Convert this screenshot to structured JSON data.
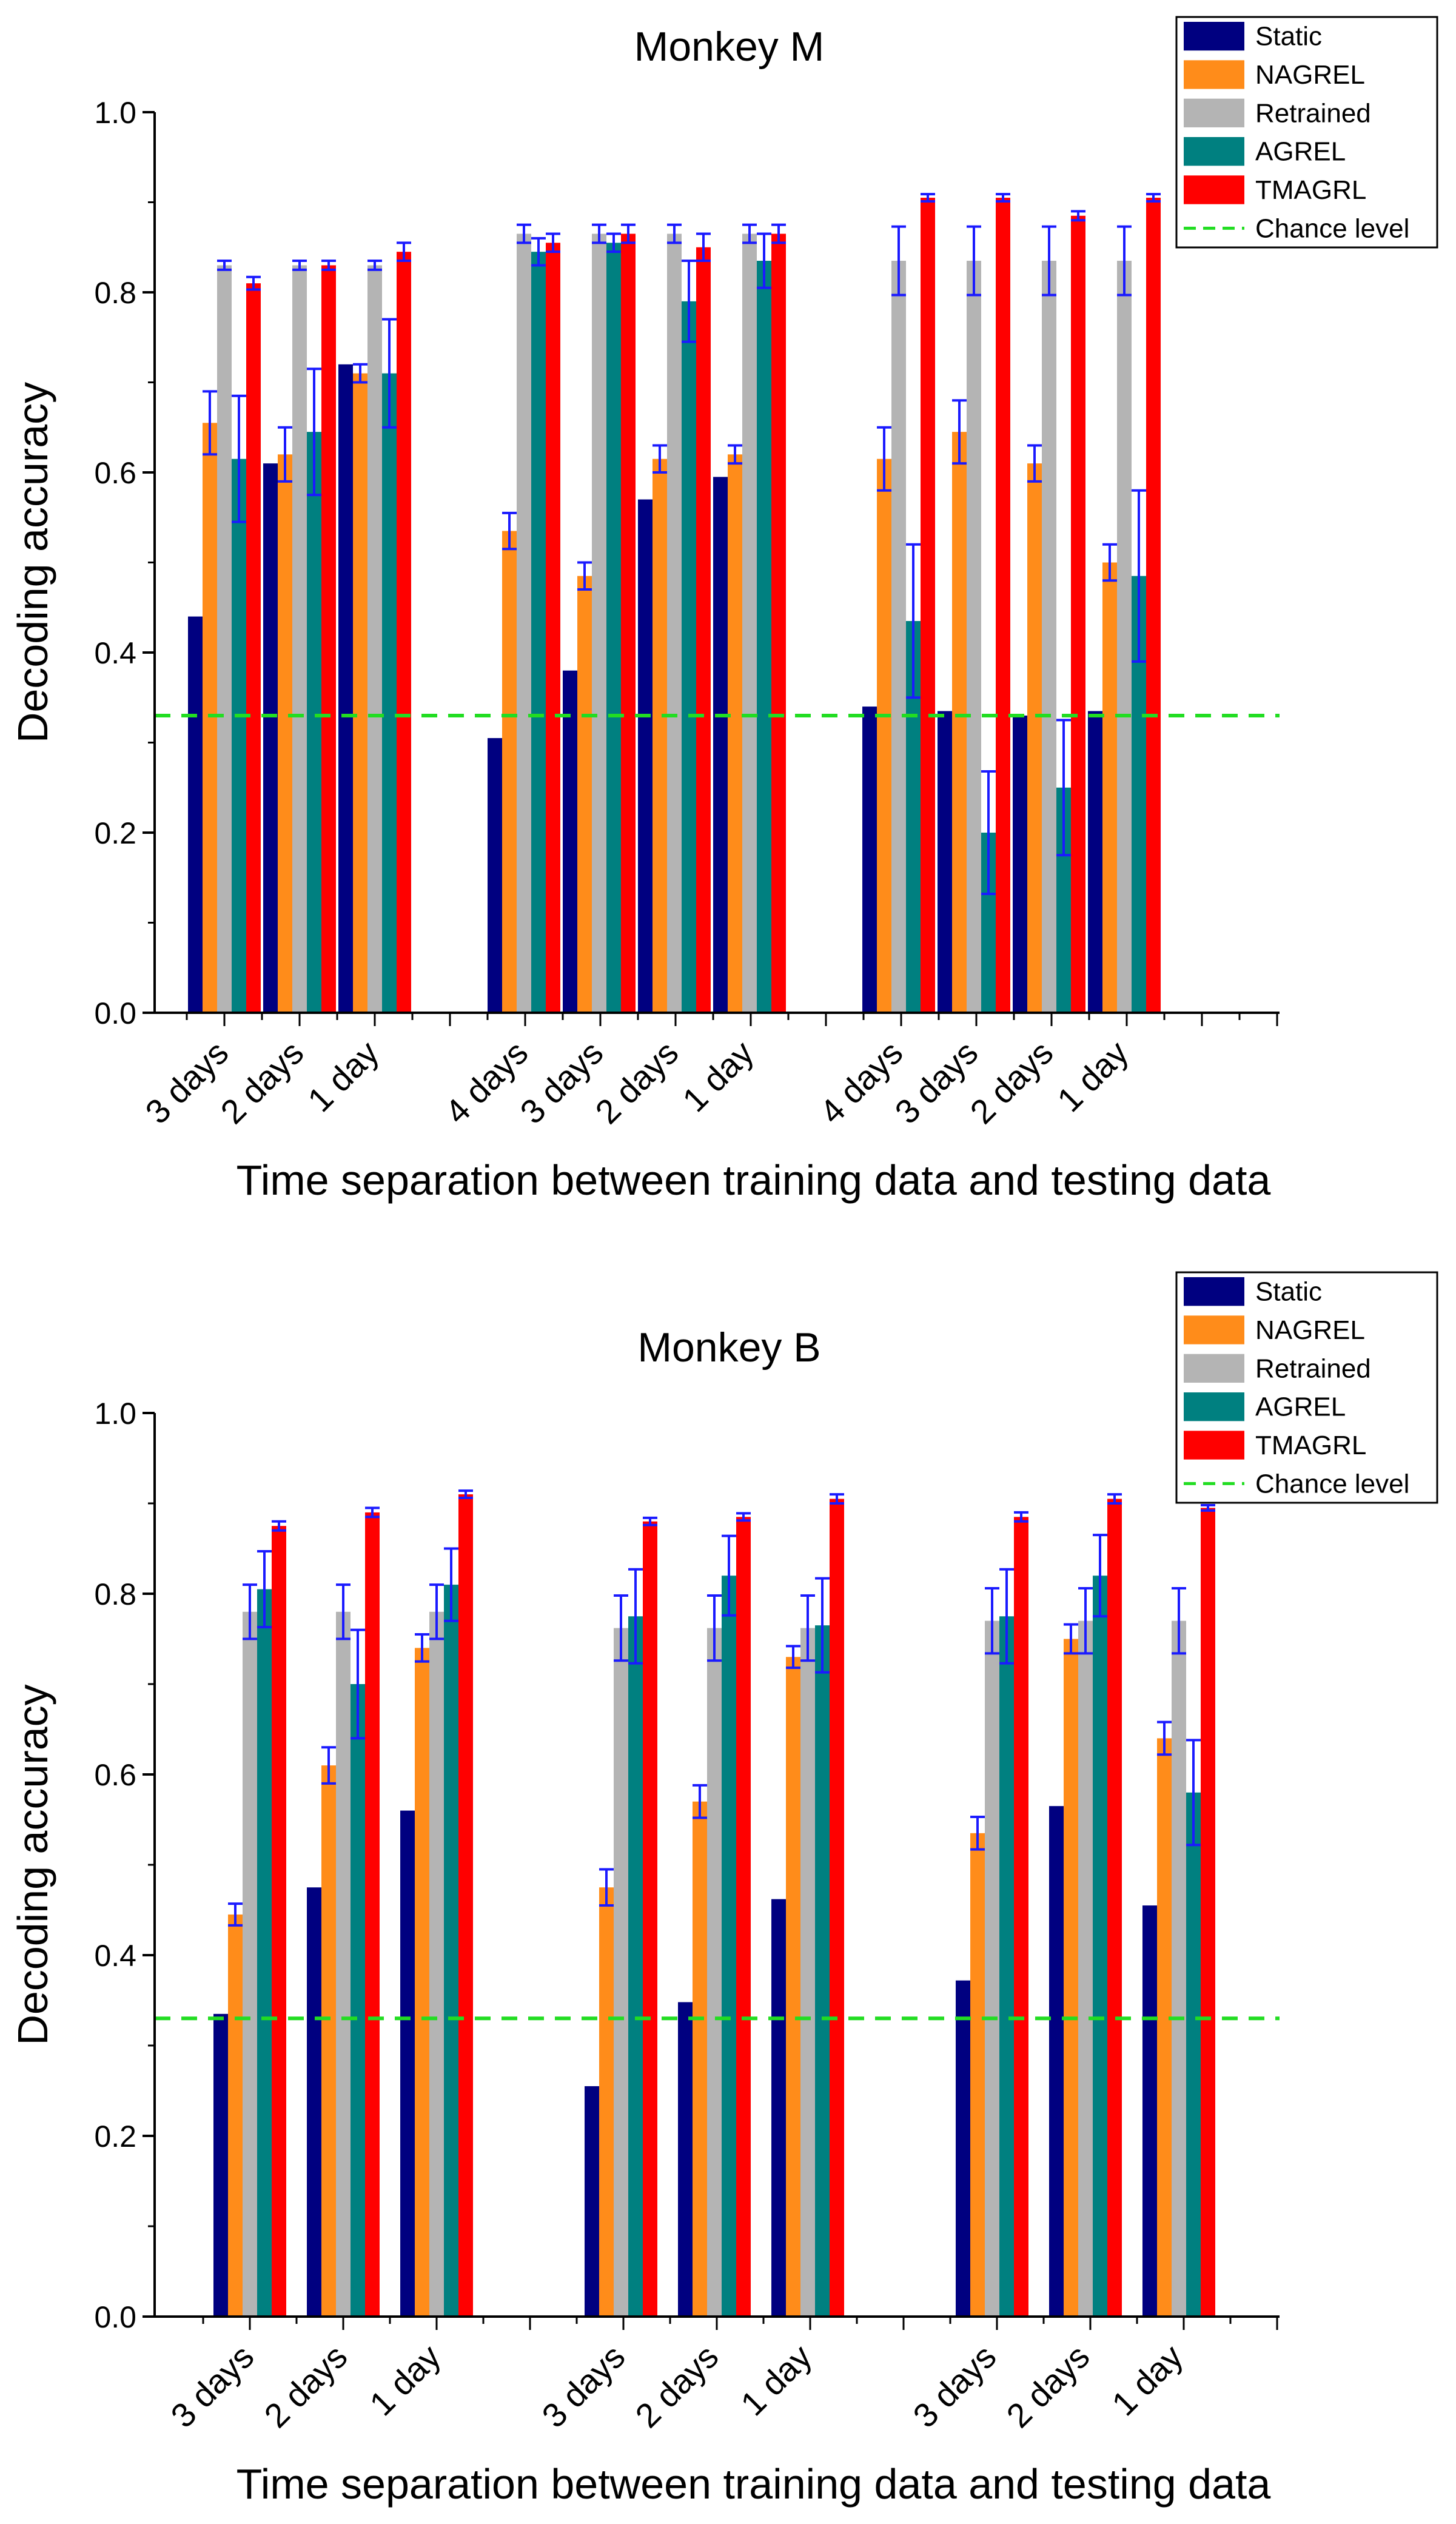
{
  "colors": {
    "Static": "#000080",
    "NAGREL": "#ff8c1a",
    "Retrained": "#b4b4b4",
    "AGREL": "#008080",
    "TMAGRL": "#ff0000",
    "Chance level": "#22dd22",
    "error_bar": "#1a1aff"
  },
  "chart_data": [
    {
      "type": "bar",
      "title": "Monkey M",
      "xlabel": "Time separation between training data and testing data",
      "ylabel": "Decoding accuracy",
      "ylim": [
        0,
        1.0
      ],
      "yticks": [
        0.0,
        0.2,
        0.4,
        0.6,
        0.8,
        1.0
      ],
      "ytick_labels": [
        "0.0",
        "0.2",
        "0.4",
        "0.6",
        "0.8",
        "1.0"
      ],
      "chance_level": 0.33,
      "legend_position": "top-right",
      "series_names": [
        "Static",
        "NAGREL",
        "Retrained",
        "AGREL",
        "TMAGRL"
      ],
      "legend_labels": [
        "Static",
        "NAGREL",
        "Retrained",
        "AGREL",
        "TMAGRL",
        "Chance level"
      ],
      "categories": [
        "3 days",
        "2 days",
        "1 day",
        "4 days",
        "3 days",
        "2 days",
        "1 day",
        "4 days",
        "3 days",
        "2 days",
        "1 day"
      ],
      "group_sizes": [
        3,
        4,
        4
      ],
      "values": [
        [
          0.44,
          0.655,
          0.83,
          0.615,
          0.81
        ],
        [
          0.61,
          0.62,
          0.83,
          0.645,
          0.83
        ],
        [
          0.72,
          0.71,
          0.83,
          0.71,
          0.845
        ],
        [
          0.305,
          0.535,
          0.865,
          0.845,
          0.855
        ],
        [
          0.38,
          0.485,
          0.865,
          0.855,
          0.865
        ],
        [
          0.57,
          0.615,
          0.865,
          0.79,
          0.85
        ],
        [
          0.595,
          0.62,
          0.865,
          0.835,
          0.865
        ],
        [
          0.34,
          0.615,
          0.835,
          0.435,
          0.905
        ],
        [
          0.335,
          0.645,
          0.835,
          0.2,
          0.905
        ],
        [
          0.33,
          0.61,
          0.835,
          0.25,
          0.885
        ],
        [
          0.335,
          0.5,
          0.835,
          0.485,
          0.905
        ]
      ],
      "errors": [
        [
          0,
          0.035,
          0.005,
          0.07,
          0.007
        ],
        [
          0,
          0.03,
          0.005,
          0.07,
          0.005
        ],
        [
          0,
          0.01,
          0.005,
          0.06,
          0.01
        ],
        [
          0,
          0.02,
          0.01,
          0.015,
          0.01
        ],
        [
          0,
          0.015,
          0.01,
          0.01,
          0.01
        ],
        [
          0,
          0.015,
          0.01,
          0.045,
          0.015
        ],
        [
          0,
          0.01,
          0.01,
          0.03,
          0.01
        ],
        [
          0,
          0.035,
          0.038,
          0.085,
          0.004
        ],
        [
          0,
          0.035,
          0.038,
          0.068,
          0.004
        ],
        [
          0,
          0.02,
          0.038,
          0.075,
          0.005
        ],
        [
          0,
          0.02,
          0.038,
          0.095,
          0.004
        ]
      ]
    },
    {
      "type": "bar",
      "title": "Monkey B",
      "xlabel": "Time separation between training data and testing data",
      "ylabel": "Decoding accuracy",
      "ylim": [
        0,
        1.0
      ],
      "yticks": [
        0.0,
        0.2,
        0.4,
        0.6,
        0.8,
        1.0
      ],
      "ytick_labels": [
        "0.0",
        "0.2",
        "0.4",
        "0.6",
        "0.8",
        "1.0"
      ],
      "chance_level": 0.33,
      "legend_position": "top-right",
      "series_names": [
        "Static",
        "NAGREL",
        "Retrained",
        "AGREL",
        "TMAGRL"
      ],
      "legend_labels": [
        "Static",
        "NAGREL",
        "Retrained",
        "AGREL",
        "TMAGRL",
        "Chance level"
      ],
      "categories": [
        "3 days",
        "2 days",
        "1 day",
        "3 days",
        "2 days",
        "1 day",
        "3 days",
        "2 days",
        "1 day"
      ],
      "group_sizes": [
        3,
        3,
        3
      ],
      "values": [
        [
          0.335,
          0.445,
          0.78,
          0.805,
          0.875
        ],
        [
          0.475,
          0.61,
          0.78,
          0.7,
          0.89
        ],
        [
          0.56,
          0.74,
          0.78,
          0.81,
          0.91
        ],
        [
          0.255,
          0.475,
          0.762,
          0.775,
          0.88
        ],
        [
          0.348,
          0.57,
          0.762,
          0.82,
          0.885
        ],
        [
          0.462,
          0.73,
          0.762,
          0.765,
          0.905
        ],
        [
          0.372,
          0.535,
          0.77,
          0.775,
          0.885
        ],
        [
          0.565,
          0.75,
          0.77,
          0.82,
          0.905
        ],
        [
          0.455,
          0.64,
          0.77,
          0.58,
          0.895
        ]
      ],
      "errors": [
        [
          0,
          0.012,
          0.03,
          0.042,
          0.005
        ],
        [
          0,
          0.02,
          0.03,
          0.06,
          0.005
        ],
        [
          0,
          0.015,
          0.03,
          0.04,
          0.004
        ],
        [
          0,
          0.02,
          0.036,
          0.052,
          0.004
        ],
        [
          0,
          0.018,
          0.036,
          0.044,
          0.004
        ],
        [
          0,
          0.012,
          0.036,
          0.052,
          0.005
        ],
        [
          0,
          0.018,
          0.036,
          0.052,
          0.005
        ],
        [
          0,
          0.016,
          0.036,
          0.045,
          0.005
        ],
        [
          0,
          0.018,
          0.036,
          0.058,
          0.003
        ]
      ]
    }
  ]
}
